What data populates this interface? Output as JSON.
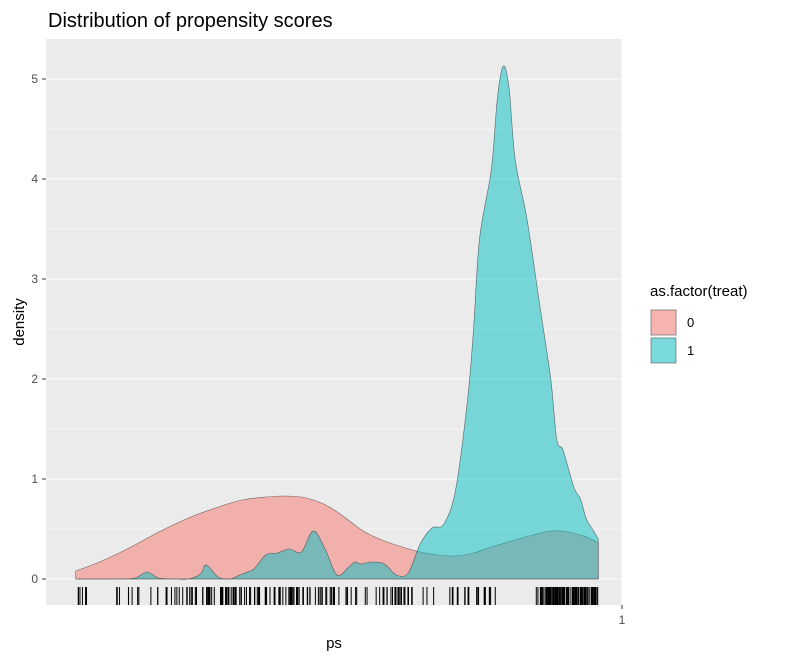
{
  "chart_data": {
    "type": "area",
    "title": "Distribution of propensity scores",
    "xlabel": "ps",
    "ylabel": "density",
    "x_ticks": [
      1
    ],
    "x_tick_labels": [
      "1"
    ],
    "y_ticks": [
      0,
      1,
      2,
      3,
      4,
      5
    ],
    "y_tick_labels": [
      "0",
      "1",
      "2",
      "3",
      "4",
      "5"
    ],
    "xlim": [
      0.03,
      1.0
    ],
    "ylim": [
      -0.26,
      5.4
    ],
    "grid": true,
    "legend": {
      "title": "as.factor(treat)",
      "position": "right"
    },
    "series": [
      {
        "name": "0",
        "color": "#F8766D",
        "x": [
          0.08,
          0.12,
          0.17,
          0.22,
          0.27,
          0.32,
          0.36,
          0.4,
          0.43,
          0.46,
          0.49,
          0.51,
          0.53,
          0.55,
          0.57,
          0.6,
          0.63,
          0.66,
          0.69,
          0.72,
          0.75,
          0.78,
          0.82,
          0.85,
          0.88,
          0.91,
          0.94,
          0.96
        ],
        "values": [
          0.08,
          0.17,
          0.31,
          0.47,
          0.61,
          0.72,
          0.79,
          0.82,
          0.83,
          0.82,
          0.77,
          0.71,
          0.63,
          0.54,
          0.46,
          0.38,
          0.32,
          0.27,
          0.24,
          0.23,
          0.26,
          0.32,
          0.39,
          0.44,
          0.48,
          0.47,
          0.42,
          0.36
        ]
      },
      {
        "name": "1",
        "color": "#00BFC4",
        "x": [
          0.08,
          0.15,
          0.18,
          0.2,
          0.22,
          0.25,
          0.27,
          0.29,
          0.3,
          0.32,
          0.34,
          0.36,
          0.38,
          0.4,
          0.42,
          0.44,
          0.46,
          0.48,
          0.5,
          0.52,
          0.54,
          0.55,
          0.56,
          0.58,
          0.6,
          0.62,
          0.64,
          0.66,
          0.68,
          0.7,
          0.72,
          0.74,
          0.75,
          0.76,
          0.78,
          0.79,
          0.8,
          0.81,
          0.82,
          0.84,
          0.86,
          0.88,
          0.89,
          0.9,
          0.91,
          0.92,
          0.93,
          0.94,
          0.95,
          0.96
        ],
        "values": [
          0.0,
          0.0,
          0.01,
          0.07,
          0.01,
          0.0,
          0.0,
          0.05,
          0.14,
          0.02,
          0.0,
          0.05,
          0.1,
          0.24,
          0.26,
          0.3,
          0.27,
          0.48,
          0.3,
          0.04,
          0.12,
          0.17,
          0.15,
          0.17,
          0.15,
          0.04,
          0.06,
          0.35,
          0.51,
          0.55,
          0.9,
          1.8,
          2.5,
          3.4,
          4.1,
          4.8,
          5.13,
          4.9,
          4.2,
          3.6,
          2.8,
          2.0,
          1.4,
          1.3,
          1.1,
          0.9,
          0.8,
          0.6,
          0.5,
          0.4
        ]
      }
    ],
    "rug_note": "rug marks along x axis for individual observations"
  }
}
